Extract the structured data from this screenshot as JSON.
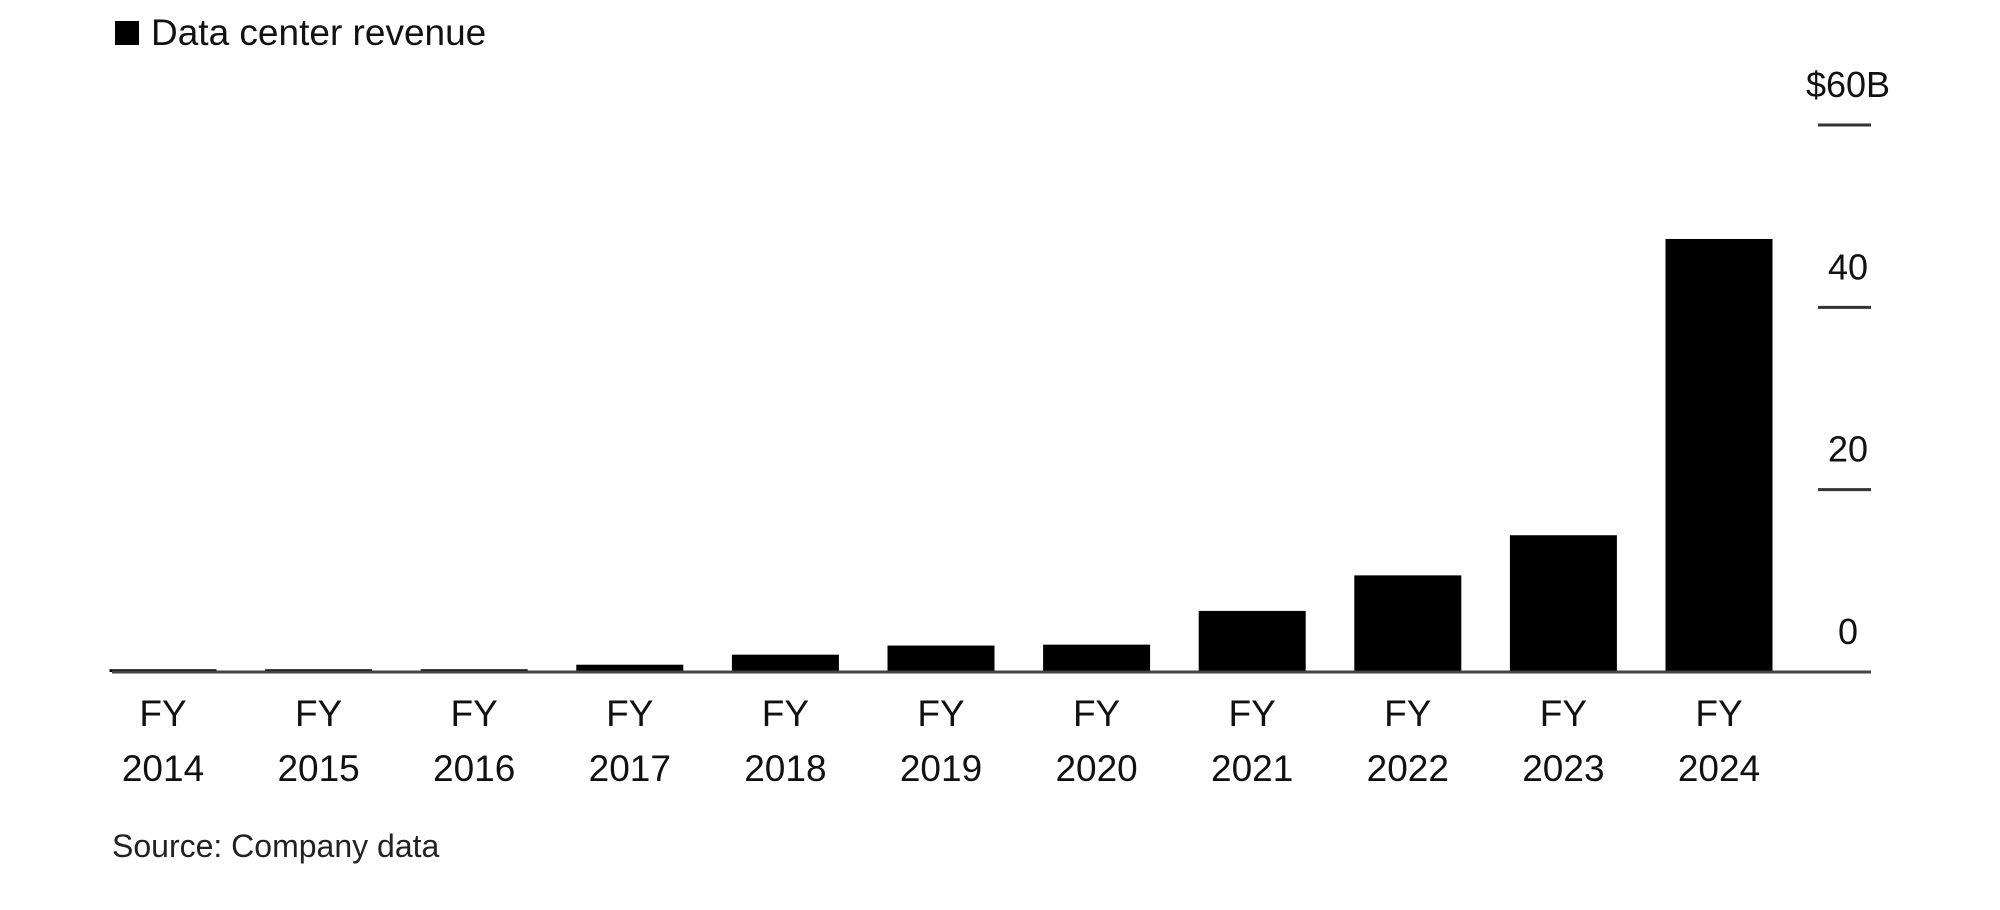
{
  "chart_data": {
    "type": "bar",
    "categories": [
      "FY 2014",
      "FY 2015",
      "FY 2016",
      "FY 2017",
      "FY 2018",
      "FY 2019",
      "FY 2020",
      "FY 2021",
      "FY 2022",
      "FY 2023",
      "FY 2024"
    ],
    "series": [
      {
        "name": "Data center revenue",
        "color": "#000000",
        "values": [
          0.3,
          0.3,
          0.3,
          0.8,
          1.9,
          2.9,
          3.0,
          6.7,
          10.6,
          15.0,
          47.5
        ]
      }
    ],
    "ylim": [
      0,
      60
    ],
    "yticks": [
      0,
      20,
      40,
      {
        "value": 60,
        "label": "$60B"
      }
    ],
    "source": "Source: Company data"
  }
}
